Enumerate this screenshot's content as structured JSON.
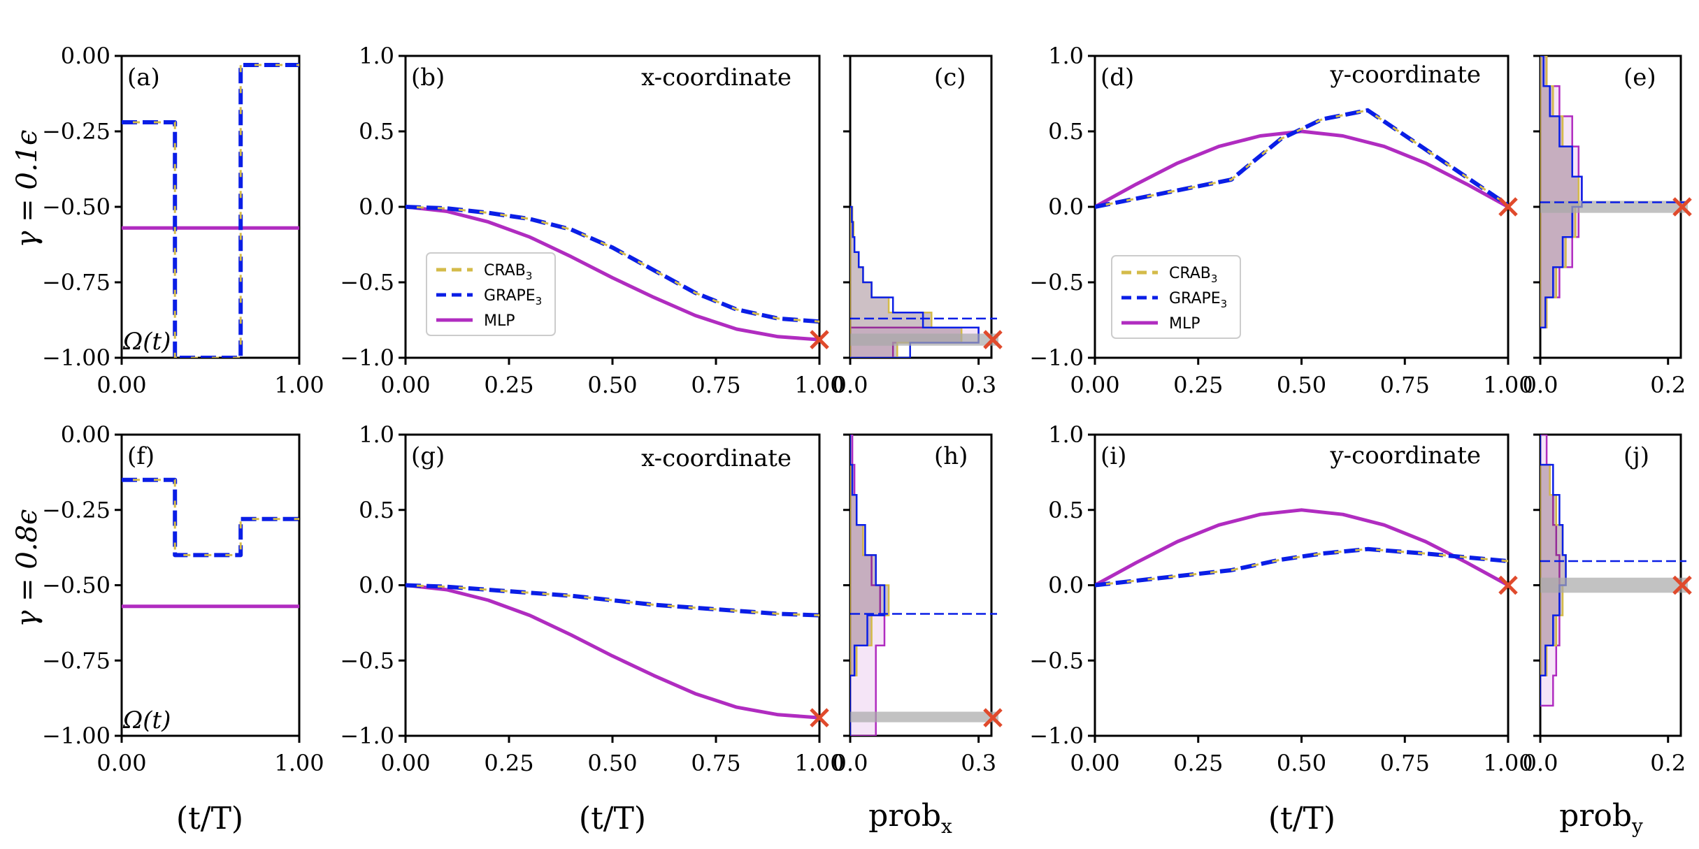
{
  "colors": {
    "crab": "#d4bb4a",
    "grape": "#0a1ee6",
    "mlp": "#b02cc0",
    "cross": "#e04a2c",
    "hist_fill": "#5a3040",
    "band": "#a8a8a8"
  },
  "legend": {
    "crab": "CRAB",
    "crab_sub": "3",
    "grape": "GRAPE",
    "grape_sub": "3",
    "mlp": "MLP"
  },
  "labels": {
    "row1": "γ = 0.1ϵ",
    "row2": "γ = 0.8ϵ",
    "omega": "Ω(t)",
    "xtitle_time": "(t/T)",
    "xtitle_probx": "prob",
    "xtitle_probx_sub": "x",
    "xtitle_proby": "prob",
    "xtitle_proby_sub": "y",
    "x_coord": "x-coordinate",
    "y_coord": "y-coordinate"
  },
  "chart_data": [
    {
      "panel": "(a)",
      "type": "line",
      "xlim": [
        0,
        1
      ],
      "ylim": [
        -1.0,
        0.0
      ],
      "xticks": [
        "0.00",
        "1.00"
      ],
      "yticks": [
        "0.00",
        "−0.25",
        "−0.50",
        "−0.75",
        "−1.00"
      ],
      "series": [
        {
          "name": "CRAB",
          "x": [
            0,
            0.3,
            0.3,
            0.67,
            0.67,
            1.0
          ],
          "y": [
            -0.22,
            -0.22,
            -1.0,
            -1.0,
            -0.03,
            -0.03
          ]
        },
        {
          "name": "GRAPE",
          "x": [
            0,
            0.3,
            0.3,
            0.67,
            0.67,
            1.0
          ],
          "y": [
            -0.22,
            -0.22,
            -1.0,
            -1.0,
            -0.03,
            -0.03
          ]
        },
        {
          "name": "MLP",
          "x": [
            0,
            1.0
          ],
          "y": [
            -0.57,
            -0.57
          ]
        }
      ]
    },
    {
      "panel": "(b)",
      "type": "line",
      "xlim": [
        0,
        1
      ],
      "ylim": [
        -1.0,
        1.0
      ],
      "xticks": [
        "0.00",
        "0.25",
        "0.50",
        "0.75",
        "1.00"
      ],
      "yticks": [
        "1.0",
        "0.5",
        "0.0",
        "−0.5",
        "−1.0"
      ],
      "series": [
        {
          "name": "CRAB",
          "x": [
            0,
            0.1,
            0.2,
            0.3,
            0.4,
            0.5,
            0.6,
            0.7,
            0.8,
            0.9,
            1.0
          ],
          "y": [
            0.0,
            -0.01,
            -0.04,
            -0.08,
            -0.15,
            -0.27,
            -0.42,
            -0.57,
            -0.68,
            -0.74,
            -0.76
          ]
        },
        {
          "name": "GRAPE",
          "x": [
            0,
            0.1,
            0.2,
            0.3,
            0.4,
            0.5,
            0.6,
            0.7,
            0.8,
            0.9,
            1.0
          ],
          "y": [
            0.0,
            -0.01,
            -0.04,
            -0.08,
            -0.15,
            -0.27,
            -0.42,
            -0.57,
            -0.68,
            -0.74,
            -0.76
          ]
        },
        {
          "name": "MLP",
          "x": [
            0,
            0.1,
            0.2,
            0.3,
            0.4,
            0.5,
            0.6,
            0.7,
            0.8,
            0.9,
            1.0
          ],
          "y": [
            0.0,
            -0.03,
            -0.1,
            -0.2,
            -0.33,
            -0.47,
            -0.6,
            -0.72,
            -0.81,
            -0.86,
            -0.88
          ]
        }
      ],
      "target": {
        "x": 1.0,
        "y": -0.88
      }
    },
    {
      "panel": "(c)",
      "type": "histogram",
      "xlim": [
        0,
        0.33
      ],
      "ylim": [
        -1.0,
        1.0
      ],
      "xticks": [
        "0.0",
        "0.3"
      ],
      "bins_y": [
        -1.0,
        -0.9,
        -0.8,
        -0.7,
        -0.6,
        -0.5,
        -0.4,
        -0.3,
        -0.2,
        -0.1,
        0.0
      ],
      "crab": [
        0.11,
        0.26,
        0.19,
        0.09,
        0.05,
        0.03,
        0.02,
        0.01,
        0.008,
        0.005
      ],
      "grape": [
        0.14,
        0.3,
        0.17,
        0.1,
        0.05,
        0.03,
        0.02,
        0.01,
        0.006,
        0.004
      ],
      "mlp": [
        0.1,
        0.3,
        0.0,
        0.0,
        0.0,
        0.0,
        0.0,
        0.0,
        0.0,
        0.0
      ],
      "grape_mean": -0.74,
      "band": [
        -0.92,
        -0.84
      ],
      "target": -0.88
    },
    {
      "panel": "(d)",
      "type": "line",
      "xlim": [
        0,
        1
      ],
      "ylim": [
        -1.0,
        1.0
      ],
      "xticks": [
        "0.00",
        "0.25",
        "0.50",
        "0.75",
        "1.00"
      ],
      "yticks": [
        "1.0",
        "0.5",
        "0.0",
        "−0.5",
        "−1.0"
      ],
      "series": [
        {
          "name": "CRAB",
          "x": [
            0,
            0.33,
            0.45,
            0.55,
            0.66,
            1.0
          ],
          "y": [
            0.0,
            0.18,
            0.45,
            0.58,
            0.64,
            0.01
          ]
        },
        {
          "name": "GRAPE",
          "x": [
            0,
            0.33,
            0.45,
            0.55,
            0.66,
            1.0
          ],
          "y": [
            0.0,
            0.18,
            0.45,
            0.58,
            0.64,
            0.01
          ]
        },
        {
          "name": "MLP",
          "x": [
            0,
            0.1,
            0.2,
            0.3,
            0.4,
            0.5,
            0.6,
            0.7,
            0.8,
            0.9,
            1.0
          ],
          "y": [
            0.0,
            0.15,
            0.29,
            0.4,
            0.47,
            0.5,
            0.47,
            0.4,
            0.29,
            0.15,
            0.0
          ]
        }
      ],
      "target": {
        "x": 1.0,
        "y": 0.0
      }
    },
    {
      "panel": "(e)",
      "type": "histogram",
      "xlim": [
        0,
        0.22
      ],
      "ylim": [
        -1.0,
        1.0
      ],
      "xticks": [
        "0.0",
        "0.2"
      ],
      "bins_y": [
        -0.8,
        -0.6,
        -0.4,
        -0.2,
        0.0,
        0.2,
        0.4,
        0.6,
        0.8,
        1.0
      ],
      "crab": [
        0.01,
        0.025,
        0.04,
        0.055,
        0.06,
        0.05,
        0.035,
        0.02,
        0.01
      ],
      "grape": [
        0.008,
        0.02,
        0.035,
        0.05,
        0.065,
        0.05,
        0.03,
        0.015,
        0.005
      ],
      "mlp": [
        0.01,
        0.03,
        0.05,
        0.06,
        0.065,
        0.06,
        0.05,
        0.03,
        0.01
      ],
      "grape_mean": 0.03,
      "band": [
        -0.04,
        0.04
      ],
      "target": 0.0
    },
    {
      "panel": "(f)",
      "type": "line",
      "xlim": [
        0,
        1
      ],
      "ylim": [
        -1.0,
        0.0
      ],
      "xticks": [
        "0.00",
        "1.00"
      ],
      "yticks": [
        "0.00",
        "−0.25",
        "−0.50",
        "−0.75",
        "−1.00"
      ],
      "series": [
        {
          "name": "CRAB",
          "x": [
            0,
            0.3,
            0.3,
            0.67,
            0.67,
            1.0
          ],
          "y": [
            -0.15,
            -0.15,
            -0.4,
            -0.4,
            -0.28,
            -0.28
          ]
        },
        {
          "name": "GRAPE",
          "x": [
            0,
            0.3,
            0.3,
            0.67,
            0.67,
            1.0
          ],
          "y": [
            -0.15,
            -0.15,
            -0.4,
            -0.4,
            -0.28,
            -0.28
          ]
        },
        {
          "name": "MLP",
          "x": [
            0,
            1.0
          ],
          "y": [
            -0.57,
            -0.57
          ]
        }
      ]
    },
    {
      "panel": "(g)",
      "type": "line",
      "xlim": [
        0,
        1
      ],
      "ylim": [
        -1.0,
        1.0
      ],
      "xticks": [
        "0.00",
        "0.25",
        "0.50",
        "0.75",
        "1.00"
      ],
      "yticks": [
        "1.0",
        "0.5",
        "0.0",
        "−0.5",
        "−1.0"
      ],
      "series": [
        {
          "name": "CRAB",
          "x": [
            0,
            0.1,
            0.2,
            0.3,
            0.4,
            0.5,
            0.6,
            0.7,
            0.8,
            0.9,
            1.0
          ],
          "y": [
            0.0,
            -0.01,
            -0.03,
            -0.05,
            -0.07,
            -0.1,
            -0.13,
            -0.15,
            -0.17,
            -0.19,
            -0.2
          ]
        },
        {
          "name": "GRAPE",
          "x": [
            0,
            0.1,
            0.2,
            0.3,
            0.4,
            0.5,
            0.6,
            0.7,
            0.8,
            0.9,
            1.0
          ],
          "y": [
            0.0,
            -0.01,
            -0.03,
            -0.05,
            -0.07,
            -0.1,
            -0.13,
            -0.15,
            -0.17,
            -0.19,
            -0.2
          ]
        },
        {
          "name": "MLP",
          "x": [
            0,
            0.1,
            0.2,
            0.3,
            0.4,
            0.5,
            0.6,
            0.7,
            0.8,
            0.9,
            1.0
          ],
          "y": [
            0.0,
            -0.03,
            -0.1,
            -0.2,
            -0.33,
            -0.47,
            -0.6,
            -0.72,
            -0.81,
            -0.86,
            -0.88
          ]
        }
      ],
      "target": {
        "x": 1.0,
        "y": -0.88
      }
    },
    {
      "panel": "(h)",
      "type": "histogram",
      "xlim": [
        0,
        0.33
      ],
      "ylim": [
        -1.0,
        1.0
      ],
      "xticks": [
        "0.0",
        "0.3"
      ],
      "bins_y": [
        -1.0,
        -0.8,
        -0.6,
        -0.4,
        -0.2,
        0.0,
        0.2,
        0.4,
        0.6,
        0.8,
        1.0
      ],
      "crab": [
        0.0,
        0.0,
        0.015,
        0.05,
        0.09,
        0.06,
        0.03,
        0.015,
        0.005,
        0.0
      ],
      "grape": [
        0.0,
        0.0,
        0.01,
        0.04,
        0.08,
        0.06,
        0.035,
        0.015,
        0.005,
        0.0
      ],
      "mlp": [
        0.06,
        0.06,
        0.06,
        0.08,
        0.07,
        0.05,
        0.03,
        0.015,
        0.01,
        0.005
      ],
      "grape_mean": -0.19,
      "band": [
        -0.91,
        -0.84
      ],
      "target": -0.88
    },
    {
      "panel": "(i)",
      "type": "line",
      "xlim": [
        0,
        1
      ],
      "ylim": [
        -1.0,
        1.0
      ],
      "xticks": [
        "0.00",
        "0.25",
        "0.50",
        "0.75",
        "1.00"
      ],
      "yticks": [
        "1.0",
        "0.5",
        "0.0",
        "−0.5",
        "−1.0"
      ],
      "series": [
        {
          "name": "CRAB",
          "x": [
            0,
            0.33,
            0.45,
            0.55,
            0.66,
            0.8,
            1.0
          ],
          "y": [
            0.0,
            0.1,
            0.17,
            0.21,
            0.24,
            0.21,
            0.16
          ]
        },
        {
          "name": "GRAPE",
          "x": [
            0,
            0.33,
            0.45,
            0.55,
            0.66,
            0.8,
            1.0
          ],
          "y": [
            0.0,
            0.1,
            0.17,
            0.21,
            0.24,
            0.21,
            0.16
          ]
        },
        {
          "name": "MLP",
          "x": [
            0,
            0.1,
            0.2,
            0.3,
            0.4,
            0.5,
            0.6,
            0.7,
            0.8,
            0.9,
            1.0
          ],
          "y": [
            0.0,
            0.15,
            0.29,
            0.4,
            0.47,
            0.5,
            0.47,
            0.4,
            0.29,
            0.15,
            0.0
          ]
        }
      ],
      "target": {
        "x": 1.0,
        "y": 0.0
      }
    },
    {
      "panel": "(j)",
      "type": "histogram",
      "xlim": [
        0,
        0.22
      ],
      "ylim": [
        -1.0,
        1.0
      ],
      "xticks": [
        "0.0",
        "0.2"
      ],
      "bins_y": [
        -0.8,
        -0.6,
        -0.4,
        -0.2,
        0.0,
        0.2,
        0.4,
        0.6,
        0.8,
        1.0
      ],
      "crab": [
        0.0,
        0.01,
        0.025,
        0.035,
        0.04,
        0.035,
        0.025,
        0.015,
        0.0
      ],
      "grape": [
        0.0,
        0.008,
        0.02,
        0.03,
        0.04,
        0.035,
        0.03,
        0.02,
        0.0
      ],
      "mlp": [
        0.02,
        0.025,
        0.03,
        0.03,
        0.03,
        0.025,
        0.02,
        0.015,
        0.01
      ],
      "grape_mean": 0.16,
      "band": [
        -0.05,
        0.05
      ],
      "target": 0.0
    }
  ]
}
